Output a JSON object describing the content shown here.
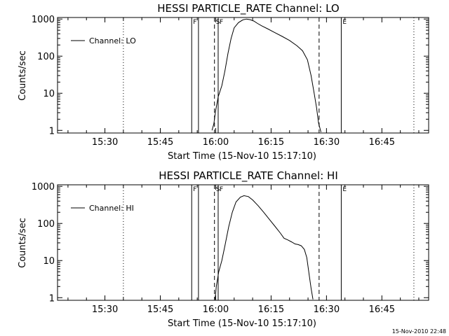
{
  "chart_data": [
    {
      "type": "line",
      "title": "HESSI PARTICLE_RATE Channel: LO",
      "xlabel": "Start Time (15-Nov-10 15:17:10)",
      "ylabel": "Counts/sec",
      "yscale": "log",
      "ylim": [
        0.85,
        1100
      ],
      "xlim": [
        "15:17:10",
        "16:57:40"
      ],
      "xticks": [
        "15:30",
        "15:45",
        "16:00",
        "16:15",
        "16:30",
        "16:45"
      ],
      "yticks": [
        "1",
        "10",
        "100",
        "1000"
      ],
      "legend": "top-left",
      "grid": false,
      "series": [
        {
          "name": "Channel: LO",
          "x": [
            "15:59:00",
            "15:59:30",
            "16:00:00",
            "16:00:40",
            "16:01:40",
            "16:02:30",
            "16:03:20",
            "16:04:10",
            "16:05:00",
            "16:06:10",
            "16:07:20",
            "16:08:20",
            "16:09:20",
            "16:10:20",
            "16:11:20",
            "16:12:30",
            "16:14:00",
            "16:16:00",
            "16:18:00",
            "16:20:00",
            "16:22:00",
            "16:23:30",
            "16:24:50",
            "16:25:50",
            "16:26:40",
            "16:27:20",
            "16:27:50",
            "16:28:30"
          ],
          "y": [
            1,
            1.5,
            3.5,
            8,
            16,
            40,
            120,
            300,
            580,
            800,
            950,
            1000,
            960,
            880,
            760,
            650,
            550,
            430,
            340,
            265,
            190,
            140,
            80,
            30,
            10,
            4,
            1.6,
            0.9
          ]
        }
      ],
      "vertical_lines": [
        {
          "label": "",
          "time": "15:35:00",
          "style": "dotted"
        },
        {
          "label": "F",
          "time": "15:53:30",
          "style": "solid"
        },
        {
          "label": "",
          "time": "15:55:20",
          "style": "solid"
        },
        {
          "label": "S",
          "time": "15:59:40",
          "style": "dashed"
        },
        {
          "label": "F",
          "time": "16:00:40",
          "style": "solid"
        },
        {
          "label": "",
          "time": "16:28:00",
          "style": "dashed"
        },
        {
          "label": "E",
          "time": "16:34:00",
          "style": "solid"
        },
        {
          "label": "",
          "time": "16:53:40",
          "style": "dotted"
        }
      ]
    },
    {
      "type": "line",
      "title": "HESSI PARTICLE_RATE Channel: HI",
      "xlabel": "Start Time (15-Nov-10 15:17:10)",
      "ylabel": "Counts/sec",
      "yscale": "log",
      "ylim": [
        0.85,
        1100
      ],
      "xlim": [
        "15:17:10",
        "16:57:40"
      ],
      "xticks": [
        "15:30",
        "15:45",
        "16:00",
        "16:15",
        "16:30",
        "16:45"
      ],
      "yticks": [
        "1",
        "10",
        "100",
        "1000"
      ],
      "legend": "top-left",
      "grid": false,
      "series": [
        {
          "name": "Channel: HI",
          "x": [
            "15:59:50",
            "16:00:10",
            "16:00:50",
            "16:01:40",
            "16:02:30",
            "16:03:30",
            "16:04:30",
            "16:05:30",
            "16:06:40",
            "16:07:40",
            "16:08:50",
            "16:10:00",
            "16:11:30",
            "16:13:00",
            "16:14:30",
            "16:16:00",
            "16:17:30",
            "16:18:30",
            "16:19:30",
            "16:20:30",
            "16:21:30",
            "16:22:20",
            "16:23:10",
            "16:24:00",
            "16:24:40",
            "16:25:20",
            "16:25:50",
            "16:26:20"
          ],
          "y": [
            0.9,
            2,
            5,
            10,
            25,
            80,
            200,
            380,
            510,
            560,
            530,
            430,
            300,
            200,
            130,
            85,
            55,
            40,
            36,
            32,
            28,
            27,
            25,
            20,
            12,
            4,
            1.8,
            0.9
          ]
        }
      ],
      "vertical_lines": [
        {
          "label": "",
          "time": "15:35:00",
          "style": "dotted"
        },
        {
          "label": "F",
          "time": "15:53:30",
          "style": "solid"
        },
        {
          "label": "",
          "time": "15:55:20",
          "style": "solid"
        },
        {
          "label": "S",
          "time": "15:59:40",
          "style": "dashed"
        },
        {
          "label": "F",
          "time": "16:00:40",
          "style": "solid"
        },
        {
          "label": "",
          "time": "16:28:00",
          "style": "dashed"
        },
        {
          "label": "E",
          "time": "16:34:00",
          "style": "solid"
        },
        {
          "label": "",
          "time": "16:53:40",
          "style": "dotted"
        }
      ]
    }
  ],
  "footer": {
    "timestamp": "15-Nov-2010 22:48"
  }
}
